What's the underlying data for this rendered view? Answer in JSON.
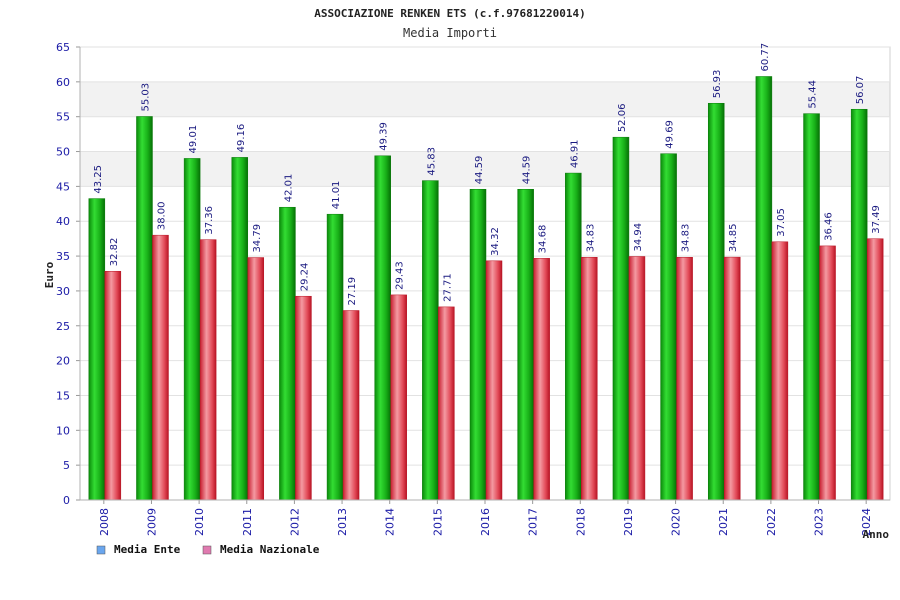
{
  "chart_data": {
    "type": "bar",
    "title": "ASSOCIAZIONE RENKEN ETS (c.f.97681220014)",
    "subtitle": "Media Importi",
    "xlabel": "Anno",
    "ylabel": "Euro",
    "ylim": [
      0,
      65
    ],
    "yticks": [
      0,
      5,
      10,
      15,
      20,
      25,
      30,
      35,
      40,
      45,
      50,
      55,
      60,
      65
    ],
    "grid": true,
    "legend_position": "bottom-left",
    "categories": [
      "2008",
      "2009",
      "2010",
      "2011",
      "2012",
      "2013",
      "2014",
      "2015",
      "2016",
      "2017",
      "2018",
      "2019",
      "2020",
      "2021",
      "2022",
      "2023",
      "2024"
    ],
    "series": [
      {
        "name": "Media Ente",
        "color": "#22bb22",
        "legend_color": "#6aa6ee",
        "values": [
          43.25,
          55.03,
          49.01,
          49.16,
          42.01,
          41.01,
          49.39,
          45.83,
          44.59,
          44.59,
          46.91,
          52.06,
          49.69,
          56.93,
          60.77,
          55.44,
          56.07
        ],
        "labels": [
          "43.25",
          "55.03",
          "49.01",
          "49.16",
          "42.01",
          "41.01",
          "49.39",
          "45.83",
          "44.59",
          "44.59",
          "46.91",
          "52.06",
          "49.69",
          "56.93",
          "60.77",
          "55.44",
          "56.07"
        ]
      },
      {
        "name": "Media Nazionale",
        "color": "#e03a48",
        "legend_color": "#e07ab0",
        "values": [
          32.82,
          38.0,
          37.36,
          34.79,
          29.24,
          27.19,
          29.43,
          27.71,
          34.32,
          34.68,
          34.83,
          34.94,
          34.83,
          34.85,
          37.05,
          36.46,
          37.49
        ],
        "labels": [
          "32.82",
          "38.00",
          "37.36",
          "34.79",
          "29.24",
          "27.19",
          "29.43",
          "27.71",
          "34.32",
          "34.68",
          "34.83",
          "34.94",
          "34.83",
          "34.85",
          "37.05",
          "36.46",
          "37.49"
        ]
      }
    ]
  }
}
